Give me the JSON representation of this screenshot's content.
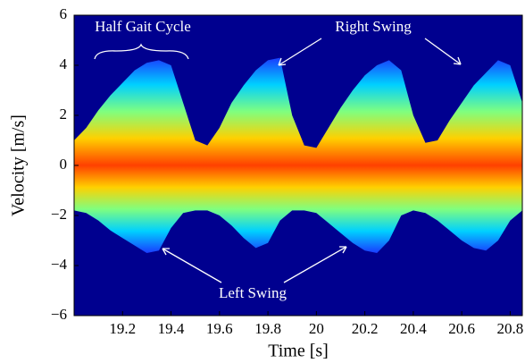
{
  "chart_data": {
    "type": "band",
    "x_label": "Time [s]",
    "y_label": "Velocity [m/s]",
    "xlim": [
      19.0,
      20.85
    ],
    "ylim": [
      -6,
      6
    ],
    "xticks": [
      19.2,
      19.4,
      19.6,
      19.8,
      20,
      20.2,
      20.4,
      20.6,
      20.8
    ],
    "yticks": [
      {
        "value": -6,
        "label": "−6"
      },
      {
        "value": -4,
        "label": "−4"
      },
      {
        "value": -2,
        "label": "−2"
      },
      0,
      2,
      4,
      6
    ],
    "background": "#00008f",
    "colors": [
      "#1a3cff",
      "#00d0ff",
      "#7fff7f",
      "#ffd000",
      "#ff4000"
    ],
    "annotations": [
      "Half Gait Cycle",
      "Right Swing",
      "Left Swing"
    ],
    "x": [
      19.0,
      19.05,
      19.1,
      19.15,
      19.2,
      19.25,
      19.3,
      19.35,
      19.4,
      19.45,
      19.5,
      19.55,
      19.6,
      19.65,
      19.7,
      19.75,
      19.8,
      19.85,
      19.9,
      19.95,
      20.0,
      20.05,
      20.1,
      20.15,
      20.2,
      20.25,
      20.3,
      20.35,
      20.4,
      20.45,
      20.5,
      20.55,
      20.6,
      20.65,
      20.7,
      20.75,
      20.8,
      20.85
    ],
    "high": [
      1.0,
      1.5,
      2.2,
      2.8,
      3.3,
      3.8,
      4.1,
      4.2,
      4.0,
      2.5,
      1.0,
      0.8,
      1.5,
      2.5,
      3.2,
      3.8,
      4.2,
      4.3,
      2.0,
      0.8,
      0.7,
      1.5,
      2.3,
      3.0,
      3.6,
      4.0,
      4.2,
      3.8,
      2.0,
      0.9,
      1.0,
      1.8,
      2.5,
      3.2,
      3.7,
      4.2,
      4.0,
      2.5
    ],
    "low": [
      -1.8,
      -1.9,
      -2.2,
      -2.6,
      -2.9,
      -3.2,
      -3.5,
      -3.4,
      -2.5,
      -1.9,
      -1.8,
      -1.8,
      -2.0,
      -2.4,
      -2.9,
      -3.3,
      -3.1,
      -2.2,
      -1.8,
      -1.8,
      -1.9,
      -2.3,
      -2.7,
      -3.1,
      -3.4,
      -3.5,
      -3.0,
      -2.0,
      -1.8,
      -1.9,
      -2.2,
      -2.6,
      -3.0,
      -3.3,
      -3.4,
      -3.0,
      -2.2,
      -1.8
    ]
  }
}
